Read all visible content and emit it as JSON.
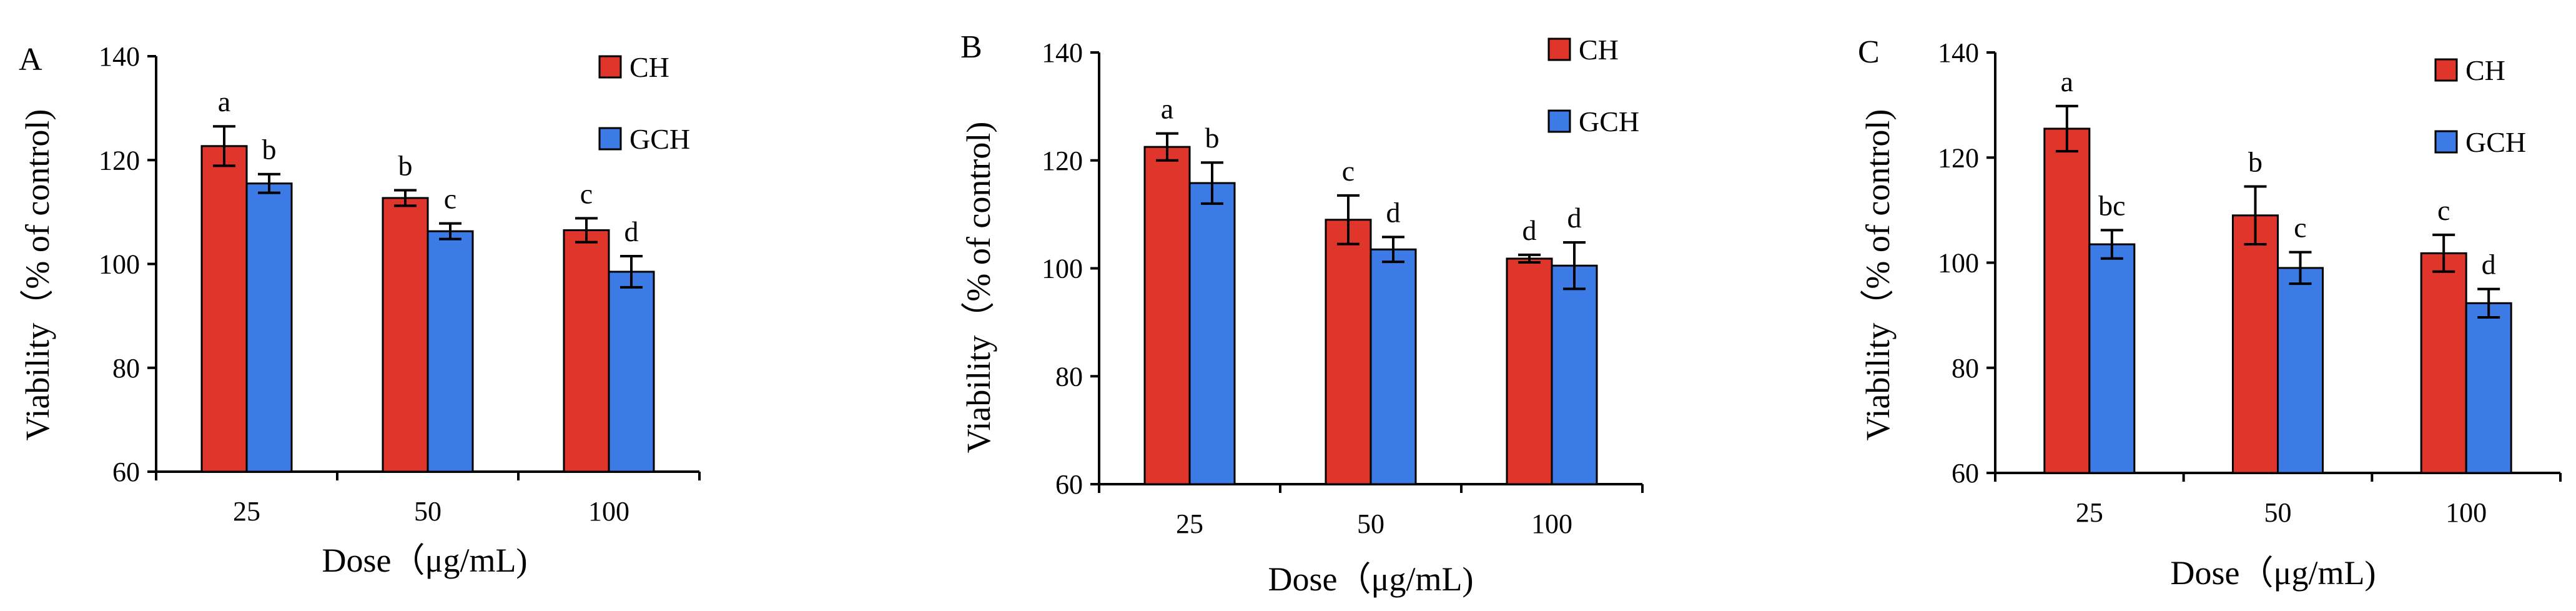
{
  "colors": {
    "CH": "#e0352b",
    "GCH": "#3c7be6",
    "axis": "#000000"
  },
  "chart_data": [
    {
      "panel": "A",
      "type": "bar",
      "title": "",
      "xlabel": "Dose（μg/mL)",
      "ylabel": "Viability（% of control)",
      "categories": [
        "25",
        "50",
        "100"
      ],
      "ylim": [
        60,
        140
      ],
      "yticks": [
        "60",
        "80",
        "100",
        "120",
        "140"
      ],
      "grid": false,
      "legend_position": "top-right",
      "series": [
        {
          "name": "CH",
          "values": [
            122.7,
            112.7,
            106.5
          ],
          "errors": [
            3.8,
            1.5,
            2.3
          ],
          "labels": [
            "a",
            "b",
            "c"
          ]
        },
        {
          "name": "GCH",
          "values": [
            115.5,
            106.3,
            98.5
          ],
          "errors": [
            1.8,
            1.5,
            3.0
          ],
          "labels": [
            "b",
            "c",
            "d"
          ]
        }
      ]
    },
    {
      "panel": "B",
      "type": "bar",
      "title": "",
      "xlabel": "Dose（μg/mL)",
      "ylabel": "Viability（% of control)",
      "categories": [
        "25",
        "50",
        "100"
      ],
      "ylim": [
        60,
        140
      ],
      "yticks": [
        "60",
        "80",
        "100",
        "120",
        "140"
      ],
      "grid": false,
      "legend_position": "top-right",
      "series": [
        {
          "name": "CH",
          "values": [
            122.5,
            109.0,
            101.8
          ],
          "errors": [
            2.5,
            4.5,
            0.7
          ],
          "labels": [
            "a",
            "c",
            "d"
          ]
        },
        {
          "name": "GCH",
          "values": [
            115.8,
            103.5,
            100.5
          ],
          "errors": [
            3.8,
            2.3,
            4.3
          ],
          "labels": [
            "b",
            "d",
            "d"
          ]
        }
      ]
    },
    {
      "panel": "C",
      "type": "bar",
      "title": "",
      "xlabel": "Dose（μg/mL)",
      "ylabel": "Viability（% of control)",
      "categories": [
        "25",
        "50",
        "100"
      ],
      "ylim": [
        60,
        140
      ],
      "yticks": [
        "60",
        "80",
        "100",
        "120",
        "140"
      ],
      "grid": false,
      "legend_position": "top-right",
      "series": [
        {
          "name": "CH",
          "values": [
            125.5,
            109.0,
            101.8
          ],
          "errors": [
            4.3,
            5.5,
            3.5
          ],
          "labels": [
            "a",
            "b",
            "c"
          ]
        },
        {
          "name": "GCH",
          "values": [
            103.5,
            99.0,
            92.3
          ],
          "errors": [
            2.7,
            3.0,
            2.7
          ],
          "labels": [
            "bc",
            "c",
            "d"
          ]
        }
      ]
    }
  ]
}
